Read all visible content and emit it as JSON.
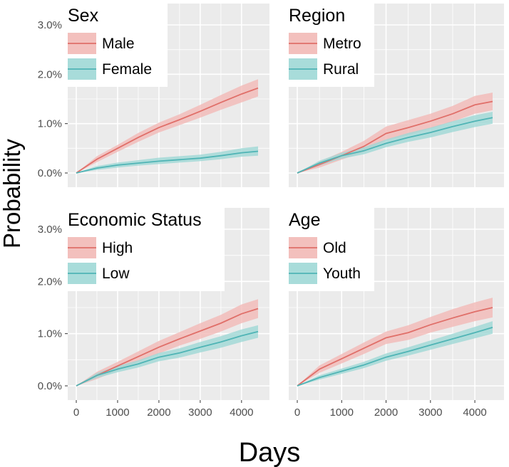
{
  "figure": {
    "ylabel": "Probability",
    "xlabel": "Days",
    "y_ticks": [
      "0.0%",
      "1.0%",
      "2.0%",
      "3.0%"
    ],
    "x_ticks": [
      "0",
      "1000",
      "2000",
      "3000",
      "4000"
    ]
  },
  "colors": {
    "series_a": "#e06f69",
    "series_b": "#4fb4b5",
    "band_a": "#f2b9b6",
    "band_b": "#9fd8d6",
    "panel_bg": "#ebebeb",
    "grid": "#ffffff"
  },
  "chart_data": [
    {
      "type": "line",
      "title": "Sex",
      "xlabel": "Days",
      "ylabel": "Probability",
      "xlim": [
        0,
        4400
      ],
      "ylim": [
        0,
        3.0
      ],
      "series": [
        {
          "name": "Male",
          "x": [
            0,
            500,
            1000,
            1500,
            2000,
            2500,
            3000,
            3500,
            4000,
            4400
          ],
          "y": [
            0,
            0.28,
            0.5,
            0.72,
            0.92,
            1.08,
            1.25,
            1.43,
            1.6,
            1.72
          ],
          "lower": [
            0,
            0.22,
            0.43,
            0.63,
            0.82,
            0.97,
            1.12,
            1.28,
            1.43,
            1.55
          ],
          "upper": [
            0,
            0.34,
            0.57,
            0.81,
            1.02,
            1.19,
            1.38,
            1.58,
            1.77,
            1.9
          ]
        },
        {
          "name": "Female",
          "x": [
            0,
            500,
            1000,
            1500,
            2000,
            2500,
            3000,
            3500,
            4000,
            4400
          ],
          "y": [
            0,
            0.1,
            0.16,
            0.2,
            0.24,
            0.27,
            0.3,
            0.35,
            0.41,
            0.44
          ],
          "lower": [
            0,
            0.06,
            0.11,
            0.15,
            0.18,
            0.21,
            0.24,
            0.28,
            0.33,
            0.35
          ],
          "upper": [
            0,
            0.14,
            0.21,
            0.26,
            0.31,
            0.34,
            0.37,
            0.43,
            0.5,
            0.54
          ]
        }
      ]
    },
    {
      "type": "line",
      "title": "Region",
      "xlabel": "Days",
      "ylabel": "Probability",
      "xlim": [
        0,
        4400
      ],
      "ylim": [
        0,
        3.0
      ],
      "series": [
        {
          "name": "Metro",
          "x": [
            0,
            500,
            1000,
            1500,
            2000,
            2500,
            3000,
            3500,
            4000,
            4400
          ],
          "y": [
            0,
            0.17,
            0.35,
            0.54,
            0.8,
            0.92,
            1.05,
            1.2,
            1.38,
            1.45
          ],
          "lower": [
            0,
            0.11,
            0.27,
            0.43,
            0.66,
            0.77,
            0.9,
            1.04,
            1.2,
            1.27
          ],
          "upper": [
            0,
            0.23,
            0.43,
            0.65,
            0.94,
            1.07,
            1.2,
            1.36,
            1.56,
            1.63
          ]
        },
        {
          "name": "Rural",
          "x": [
            0,
            500,
            1000,
            1500,
            2000,
            2500,
            3000,
            3500,
            4000,
            4400
          ],
          "y": [
            0,
            0.2,
            0.35,
            0.45,
            0.6,
            0.72,
            0.82,
            0.94,
            1.05,
            1.12
          ],
          "lower": [
            0,
            0.15,
            0.29,
            0.38,
            0.52,
            0.63,
            0.72,
            0.83,
            0.93,
            1.0
          ],
          "upper": [
            0,
            0.25,
            0.41,
            0.52,
            0.68,
            0.81,
            0.92,
            1.05,
            1.17,
            1.24
          ]
        }
      ]
    },
    {
      "type": "line",
      "title": "Economic Status",
      "xlabel": "Days",
      "ylabel": "Probability",
      "xlim": [
        0,
        4400
      ],
      "ylim": [
        0,
        3.0
      ],
      "series": [
        {
          "name": "High",
          "x": [
            0,
            500,
            1000,
            1500,
            2000,
            2500,
            3000,
            3500,
            4000,
            4400
          ],
          "y": [
            0,
            0.2,
            0.38,
            0.56,
            0.74,
            0.9,
            1.05,
            1.2,
            1.38,
            1.48
          ],
          "lower": [
            0,
            0.13,
            0.3,
            0.46,
            0.62,
            0.77,
            0.9,
            1.04,
            1.2,
            1.3
          ],
          "upper": [
            0,
            0.27,
            0.46,
            0.66,
            0.86,
            1.03,
            1.2,
            1.36,
            1.56,
            1.66
          ]
        },
        {
          "name": "Low",
          "x": [
            0,
            500,
            1000,
            1500,
            2000,
            2500,
            3000,
            3500,
            4000,
            4400
          ],
          "y": [
            0,
            0.2,
            0.32,
            0.42,
            0.55,
            0.63,
            0.74,
            0.84,
            0.96,
            1.04
          ],
          "lower": [
            0,
            0.15,
            0.26,
            0.35,
            0.47,
            0.54,
            0.64,
            0.73,
            0.84,
            0.92
          ],
          "upper": [
            0,
            0.25,
            0.38,
            0.49,
            0.63,
            0.72,
            0.84,
            0.95,
            1.08,
            1.16
          ]
        }
      ]
    },
    {
      "type": "line",
      "title": "Age",
      "xlabel": "Days",
      "ylabel": "Probability",
      "xlim": [
        0,
        4400
      ],
      "ylim": [
        0,
        3.0
      ],
      "series": [
        {
          "name": "Old",
          "x": [
            0,
            500,
            1000,
            1500,
            2000,
            2500,
            3000,
            3500,
            4000,
            4400
          ],
          "y": [
            0,
            0.32,
            0.52,
            0.72,
            0.92,
            1.02,
            1.17,
            1.3,
            1.42,
            1.5
          ],
          "lower": [
            0,
            0.25,
            0.43,
            0.61,
            0.8,
            0.88,
            1.02,
            1.13,
            1.24,
            1.31
          ],
          "upper": [
            0,
            0.39,
            0.61,
            0.83,
            1.04,
            1.16,
            1.32,
            1.47,
            1.6,
            1.69
          ]
        },
        {
          "name": "Youth",
          "x": [
            0,
            500,
            1000,
            1500,
            2000,
            2500,
            3000,
            3500,
            4000,
            4400
          ],
          "y": [
            0,
            0.16,
            0.28,
            0.4,
            0.55,
            0.66,
            0.78,
            0.9,
            1.02,
            1.12
          ],
          "lower": [
            0,
            0.12,
            0.23,
            0.34,
            0.48,
            0.58,
            0.69,
            0.8,
            0.91,
            1.0
          ],
          "upper": [
            0,
            0.2,
            0.33,
            0.46,
            0.62,
            0.74,
            0.87,
            1.0,
            1.13,
            1.24
          ]
        }
      ]
    }
  ]
}
